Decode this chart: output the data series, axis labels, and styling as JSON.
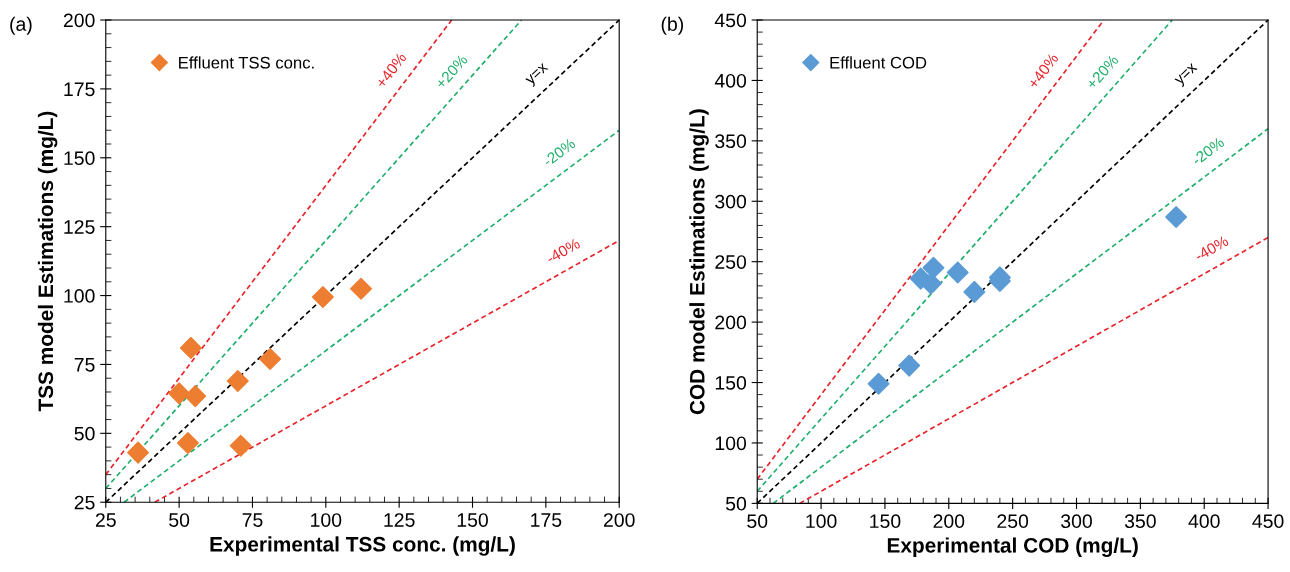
{
  "chart_data": [
    {
      "type": "scatter",
      "annotations": [
        "(a)"
      ],
      "xlabel": "Experimental TSS conc. (mg/L)",
      "ylabel": "TSS model Estimations (mg/L)",
      "xlim": [
        25,
        200
      ],
      "ylim": [
        25,
        200
      ],
      "xticks": [
        25,
        50,
        75,
        100,
        125,
        150,
        175,
        200
      ],
      "yticks": [
        25,
        50,
        75,
        100,
        125,
        150,
        175,
        200
      ],
      "grid": false,
      "legend": "top left",
      "series": [
        {
          "name": "Effluent TSS conc.",
          "marker": "diamond",
          "color": "#ed7d31",
          "x": [
            36,
            50,
            54,
            55.5,
            53,
            70,
            71,
            81,
            99,
            112
          ],
          "values": [
            43,
            64.5,
            81,
            63.5,
            46.5,
            69,
            45.5,
            77,
            99.5,
            102.5
          ]
        },
        {
          "name": "+40%",
          "type": "line",
          "marker": "none",
          "line_style": "dashed",
          "color": "#e8232a",
          "x": [
            25,
            142.9
          ],
          "values": [
            35,
            200
          ]
        },
        {
          "name": "+20%",
          "type": "line",
          "marker": "none",
          "line_style": "dashed",
          "color": "#1fae6b",
          "x": [
            25,
            166.7
          ],
          "values": [
            30,
            200
          ]
        },
        {
          "name": "y=x",
          "type": "line",
          "line_style": "dashed",
          "color": "#000000",
          "x": [
            25,
            200
          ],
          "values": [
            25,
            200
          ]
        },
        {
          "name": "-20%",
          "type": "line",
          "marker": "none",
          "line_style": "dashed",
          "color": "#1fae6b",
          "x": [
            31.25,
            200
          ],
          "values": [
            25,
            160
          ]
        },
        {
          "name": "-40%",
          "type": "line",
          "marker": "none",
          "line_style": "dashed",
          "color": "#e8232a",
          "x": [
            41.7,
            200
          ],
          "values": [
            25,
            120
          ]
        }
      ]
    },
    {
      "type": "scatter",
      "annotations": [
        "(b)"
      ],
      "xlabel": "Experimental COD (mg/L)",
      "ylabel": "COD model Estimations (mg/L)",
      "xlim": [
        50,
        450
      ],
      "ylim": [
        50,
        450
      ],
      "xticks": [
        50,
        100,
        150,
        200,
        250,
        300,
        350,
        400,
        450
      ],
      "yticks": [
        50,
        100,
        150,
        200,
        250,
        300,
        350,
        400,
        450
      ],
      "grid": false,
      "legend": "top left",
      "series": [
        {
          "name": "Effluent COD",
          "marker": "diamond",
          "color": "#5b9bd5",
          "x": [
            145,
            169,
            178,
            188,
            186,
            207,
            220,
            240,
            240,
            378
          ],
          "values": [
            149,
            164,
            236,
            245,
            232,
            241,
            225,
            237,
            234,
            287
          ]
        },
        {
          "name": "+40%",
          "type": "line",
          "marker": "none",
          "line_style": "dashed",
          "color": "#e8232a",
          "x": [
            50,
            321.4
          ],
          "values": [
            70,
            450
          ]
        },
        {
          "name": "+20%",
          "type": "line",
          "marker": "none",
          "line_style": "dashed",
          "color": "#1fae6b",
          "x": [
            50,
            375
          ],
          "values": [
            60,
            450
          ]
        },
        {
          "name": "y=x",
          "type": "line",
          "line_style": "dashed",
          "color": "#000000",
          "x": [
            50,
            450
          ],
          "values": [
            50,
            450
          ]
        },
        {
          "name": "-20%",
          "type": "line",
          "marker": "none",
          "line_style": "dashed",
          "color": "#1fae6b",
          "x": [
            62.5,
            450
          ],
          "values": [
            50,
            360
          ]
        },
        {
          "name": "-40%",
          "type": "line",
          "marker": "none",
          "line_style": "dashed",
          "color": "#e8232a",
          "x": [
            83.3,
            450
          ],
          "values": [
            50,
            270
          ]
        }
      ]
    }
  ]
}
